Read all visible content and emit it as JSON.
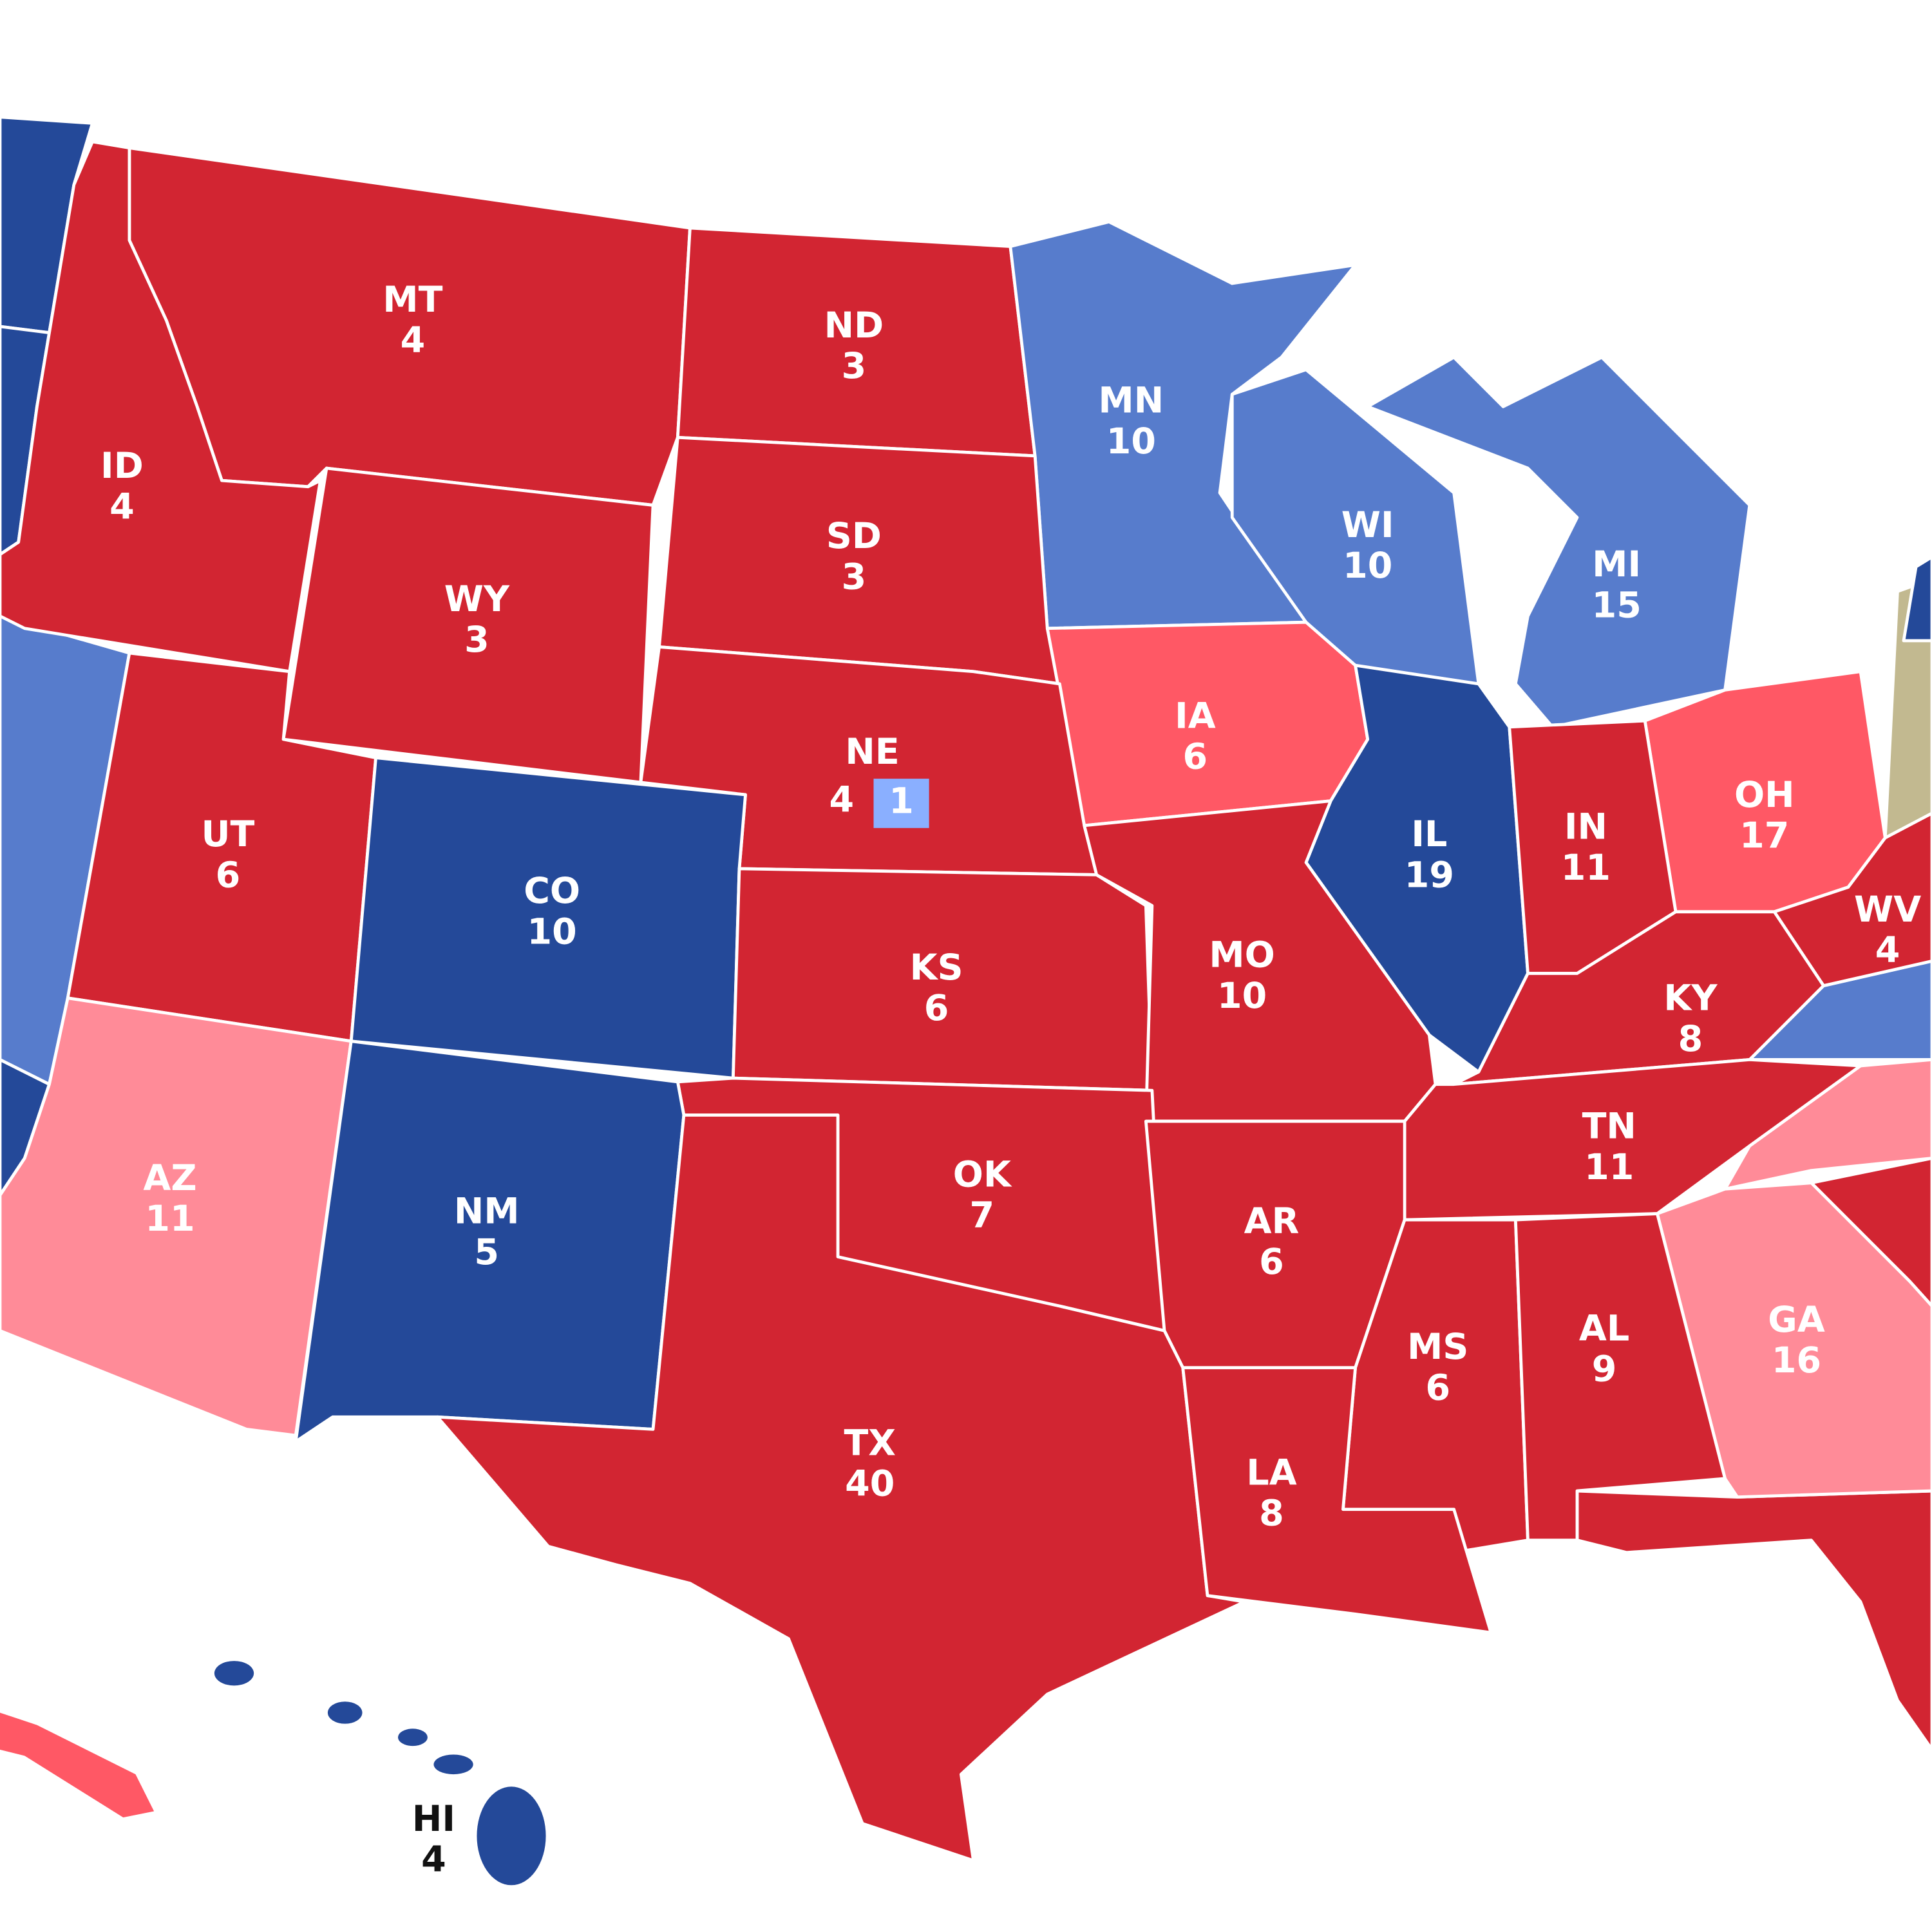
{
  "states": [
    {
      "abbr": "MT",
      "votes": 4,
      "color": "#d22532"
    },
    {
      "abbr": "ND",
      "votes": 3,
      "color": "#d22532"
    },
    {
      "abbr": "MN",
      "votes": 10,
      "color": "#577ccc"
    },
    {
      "abbr": "ID",
      "votes": 4,
      "color": "#d22532"
    },
    {
      "abbr": "SD",
      "votes": 3,
      "color": "#d22532"
    },
    {
      "abbr": "WY",
      "votes": 3,
      "color": "#d22532"
    },
    {
      "abbr": "WI",
      "votes": 10,
      "color": "#577ccc"
    },
    {
      "abbr": "MI",
      "votes": 15,
      "color": "#577ccc"
    },
    {
      "abbr": "IA",
      "votes": 6,
      "color": "#ff5865"
    },
    {
      "abbr": "NE",
      "votes": 4,
      "color": "#d22532",
      "district": {
        "votes": 1,
        "color": "#8aafff"
      }
    },
    {
      "abbr": "IL",
      "votes": 19,
      "color": "#244999"
    },
    {
      "abbr": "UT",
      "votes": 6,
      "color": "#d22532"
    },
    {
      "abbr": "OH",
      "votes": 17,
      "color": "#ff5865"
    },
    {
      "abbr": "IN",
      "votes": 11,
      "color": "#d22532"
    },
    {
      "abbr": "CO",
      "votes": 10,
      "color": "#244999"
    },
    {
      "abbr": "WV",
      "votes": 4,
      "color": "#d22532"
    },
    {
      "abbr": "KS",
      "votes": 6,
      "color": "#d22532"
    },
    {
      "abbr": "MO",
      "votes": 10,
      "color": "#d22532"
    },
    {
      "abbr": "KY",
      "votes": 8,
      "color": "#d22532"
    },
    {
      "abbr": "OK",
      "votes": 7,
      "color": "#d22532"
    },
    {
      "abbr": "TN",
      "votes": 11,
      "color": "#d22532"
    },
    {
      "abbr": "AZ",
      "votes": 11,
      "color": "#ff8b98"
    },
    {
      "abbr": "NM",
      "votes": 5,
      "color": "#244999"
    },
    {
      "abbr": "AR",
      "votes": 6,
      "color": "#d22532"
    },
    {
      "abbr": "GA",
      "votes": 16,
      "color": "#ff8b98"
    },
    {
      "abbr": "MS",
      "votes": 6,
      "color": "#d22532"
    },
    {
      "abbr": "AL",
      "votes": 9,
      "color": "#d22532"
    },
    {
      "abbr": "TX",
      "votes": 40,
      "color": "#d22532"
    },
    {
      "abbr": "LA",
      "votes": 8,
      "color": "#d22532"
    },
    {
      "abbr": "HI",
      "votes": 4,
      "color": "#244999"
    }
  ]
}
